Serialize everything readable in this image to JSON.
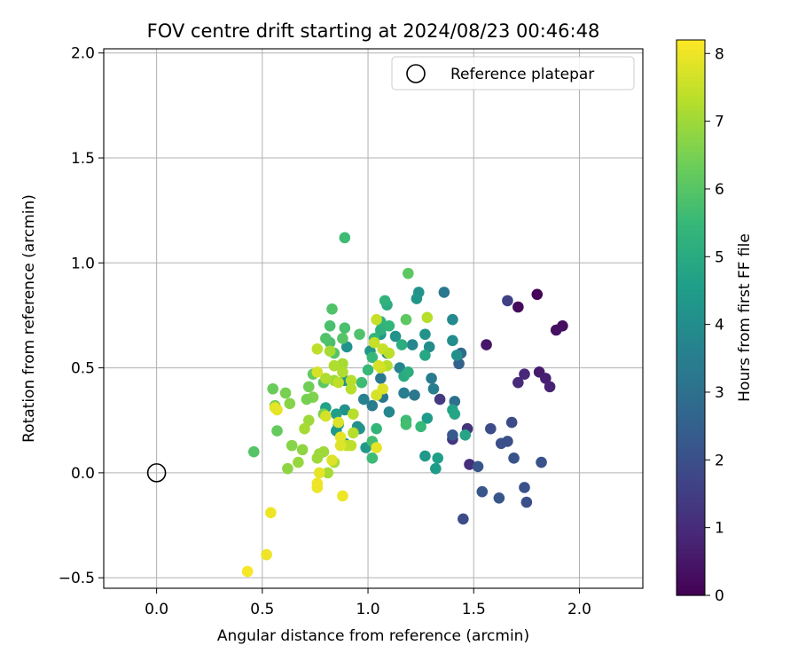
{
  "chart_data": {
    "type": "scatter",
    "title": "FOV centre drift starting at 2024/08/23 00:46:48",
    "xlabel": "Angular distance from reference (arcmin)",
    "ylabel": "Rotation from reference (arcmin)",
    "xlim": [
      -0.25,
      2.3
    ],
    "ylim": [
      -0.55,
      2.02
    ],
    "xticks": [
      0.0,
      0.5,
      1.0,
      1.5,
      2.0
    ],
    "xtick_labels": [
      "0.0",
      "0.5",
      "1.0",
      "1.5",
      "2.0"
    ],
    "yticks": [
      -0.5,
      0.0,
      0.5,
      1.0,
      1.5,
      2.0
    ],
    "ytick_labels": [
      "−0.5",
      "0.0",
      "0.5",
      "1.0",
      "1.5",
      "2.0"
    ],
    "grid": true,
    "legend": {
      "position": "top-right",
      "entries": [
        "Reference platepar"
      ]
    },
    "reference_point": {
      "x": 0.0,
      "y": 0.0,
      "name": "Reference platepar"
    },
    "colorbar": {
      "label": "Hours from first FF file",
      "range": [
        0,
        8.2
      ],
      "ticks": [
        0,
        1,
        2,
        3,
        4,
        5,
        6,
        7,
        8
      ],
      "tick_labels": [
        "0",
        "1",
        "2",
        "3",
        "4",
        "5",
        "6",
        "7",
        "8"
      ],
      "colormap": [
        "#440154",
        "#482878",
        "#3e4989",
        "#31688e",
        "#26828e",
        "#1f9e89",
        "#35b779",
        "#6ece58",
        "#b5de2b",
        "#fde725"
      ]
    },
    "points": [
      [
        1.8,
        0.85,
        0.1
      ],
      [
        1.71,
        0.79,
        0.2
      ],
      [
        1.92,
        0.7,
        0.3
      ],
      [
        1.89,
        0.68,
        0.35
      ],
      [
        1.56,
        0.61,
        0.5
      ],
      [
        1.81,
        0.48,
        0.6
      ],
      [
        1.84,
        0.45,
        0.7
      ],
      [
        1.86,
        0.41,
        0.8
      ],
      [
        1.74,
        0.47,
        0.9
      ],
      [
        1.71,
        0.43,
        1.0
      ],
      [
        1.48,
        0.04,
        1.1
      ],
      [
        1.47,
        0.21,
        1.2
      ],
      [
        1.4,
        0.16,
        1.3
      ],
      [
        1.34,
        0.35,
        1.4
      ],
      [
        1.66,
        0.82,
        1.6
      ],
      [
        1.68,
        0.24,
        1.9
      ],
      [
        1.58,
        0.21,
        1.9
      ],
      [
        1.66,
        0.15,
        2.0
      ],
      [
        1.63,
        0.14,
        2.0
      ],
      [
        1.69,
        0.07,
        2.1
      ],
      [
        1.82,
        0.05,
        2.1
      ],
      [
        1.52,
        0.03,
        2.2
      ],
      [
        1.54,
        -0.09,
        2.2
      ],
      [
        1.62,
        -0.12,
        2.2
      ],
      [
        1.74,
        -0.07,
        2.1
      ],
      [
        1.75,
        -0.14,
        2.0
      ],
      [
        1.45,
        -0.22,
        1.9
      ],
      [
        1.4,
        0.18,
        2.3
      ],
      [
        1.43,
        0.52,
        2.6
      ],
      [
        1.44,
        0.57,
        2.8
      ],
      [
        1.41,
        0.34,
        3.0
      ],
      [
        1.36,
        0.86,
        3.3
      ],
      [
        1.3,
        0.45,
        3.4
      ],
      [
        1.31,
        0.4,
        3.5
      ],
      [
        1.22,
        0.37,
        3.3
      ],
      [
        1.17,
        0.38,
        3.5
      ],
      [
        1.07,
        0.36,
        3.3
      ],
      [
        1.02,
        0.32,
        3.4
      ],
      [
        1.06,
        0.45,
        3.3
      ],
      [
        0.98,
        0.35,
        3.6
      ],
      [
        1.15,
        0.5,
        3.7
      ],
      [
        1.21,
        0.61,
        3.8
      ],
      [
        1.1,
        0.29,
        3.8
      ],
      [
        1.4,
        0.73,
        3.9
      ],
      [
        1.4,
        0.63,
        4.0
      ],
      [
        1.42,
        0.56,
        4.1
      ],
      [
        1.29,
        0.6,
        4.0
      ],
      [
        1.24,
        0.86,
        4.2
      ],
      [
        1.23,
        0.83,
        4.3
      ],
      [
        1.27,
        0.66,
        4.2
      ],
      [
        1.13,
        0.65,
        4.2
      ],
      [
        1.09,
        0.57,
        4.1
      ],
      [
        1.06,
        0.66,
        4.3
      ],
      [
        1.01,
        0.58,
        4.3
      ],
      [
        0.9,
        0.6,
        4.2
      ],
      [
        0.89,
        0.44,
        4.2
      ],
      [
        0.96,
        0.21,
        4.2
      ],
      [
        0.95,
        0.22,
        4.1
      ],
      [
        0.89,
        0.3,
        4.2
      ],
      [
        0.89,
        0.14,
        4.3
      ],
      [
        0.86,
        0.23,
        4.5
      ],
      [
        0.85,
        0.28,
        4.6
      ],
      [
        0.85,
        0.2,
        4.4
      ],
      [
        0.8,
        0.31,
        4.7
      ],
      [
        0.99,
        0.12,
        4.4
      ],
      [
        1.27,
        0.08,
        4.4
      ],
      [
        1.32,
        0.02,
        4.5
      ],
      [
        1.33,
        0.07,
        4.6
      ],
      [
        1.28,
        0.26,
        4.5
      ],
      [
        1.4,
        0.3,
        4.7
      ],
      [
        1.41,
        0.28,
        4.8
      ],
      [
        1.46,
        0.18,
        4.8
      ],
      [
        1.27,
        0.56,
        4.9
      ],
      [
        1.17,
        0.46,
        5.0
      ],
      [
        1.19,
        0.48,
        5.1
      ],
      [
        1.16,
        0.61,
        5.1
      ],
      [
        1.06,
        0.68,
        5.2
      ],
      [
        1.06,
        0.72,
        5.3
      ],
      [
        1.09,
        0.8,
        5.0
      ],
      [
        1.08,
        0.82,
        5.3
      ],
      [
        1.1,
        0.7,
        5.4
      ],
      [
        1.03,
        0.64,
        5.4
      ],
      [
        1.02,
        0.55,
        5.5
      ],
      [
        1.0,
        0.49,
        5.5
      ],
      [
        0.97,
        0.43,
        5.6
      ],
      [
        1.02,
        0.07,
        5.6
      ],
      [
        1.02,
        0.15,
        5.7
      ],
      [
        1.04,
        0.21,
        5.4
      ],
      [
        1.18,
        0.25,
        5.6
      ],
      [
        1.18,
        0.23,
        5.7
      ],
      [
        1.25,
        0.22,
        5.5
      ],
      [
        0.82,
        0.7,
        5.8
      ],
      [
        0.82,
        0.62,
        5.8
      ],
      [
        0.8,
        0.64,
        5.9
      ],
      [
        0.83,
        0.78,
        5.9
      ],
      [
        0.88,
        0.64,
        6.0
      ],
      [
        0.84,
        0.57,
        6.0
      ],
      [
        0.89,
        0.69,
        5.8
      ],
      [
        0.96,
        0.66,
        5.9
      ],
      [
        0.89,
        1.12,
        5.6
      ],
      [
        1.19,
        0.95,
        6.1
      ],
      [
        1.18,
        0.73,
        6.1
      ],
      [
        0.79,
        0.43,
        6.1
      ],
      [
        0.74,
        0.47,
        6.2
      ],
      [
        0.46,
        0.1,
        6.0
      ],
      [
        0.57,
        0.2,
        6.2
      ],
      [
        0.55,
        0.4,
        6.3
      ],
      [
        0.72,
        0.41,
        6.4
      ],
      [
        0.61,
        0.38,
        6.5
      ],
      [
        0.74,
        0.36,
        6.6
      ],
      [
        0.71,
        0.35,
        6.5
      ],
      [
        0.79,
        0.28,
        6.5
      ],
      [
        0.63,
        0.33,
        6.7
      ],
      [
        0.56,
        0.32,
        6.5
      ],
      [
        0.64,
        0.13,
        6.7
      ],
      [
        0.69,
        0.11,
        6.8
      ],
      [
        0.62,
        0.02,
        6.8
      ],
      [
        0.67,
        0.05,
        6.9
      ],
      [
        0.77,
        0.09,
        6.9
      ],
      [
        0.79,
        0.1,
        7.0
      ],
      [
        0.76,
        0.07,
        7.0
      ],
      [
        0.84,
        0.05,
        7.1
      ],
      [
        0.81,
        0.0,
        7.1
      ],
      [
        0.72,
        0.25,
        7.0
      ],
      [
        0.7,
        0.21,
        7.1
      ],
      [
        0.84,
        0.44,
        7.0
      ],
      [
        0.88,
        0.52,
        7.1
      ],
      [
        0.82,
        0.58,
        7.1
      ],
      [
        0.84,
        0.51,
        7.2
      ],
      [
        0.8,
        0.45,
        7.2
      ],
      [
        0.88,
        0.48,
        7.2
      ],
      [
        0.92,
        0.4,
        7.3
      ],
      [
        0.92,
        0.44,
        7.3
      ],
      [
        0.93,
        0.28,
        7.3
      ],
      [
        0.93,
        0.19,
        7.3
      ],
      [
        0.9,
        0.13,
        7.4
      ],
      [
        0.92,
        0.13,
        7.4
      ],
      [
        0.76,
        0.59,
        7.4
      ],
      [
        0.86,
        0.43,
        7.4
      ],
      [
        1.09,
        0.51,
        7.3
      ],
      [
        1.07,
        0.59,
        7.5
      ],
      [
        1.1,
        0.57,
        7.4
      ],
      [
        1.03,
        0.62,
        7.5
      ],
      [
        1.04,
        0.73,
        7.5
      ],
      [
        1.28,
        0.74,
        7.3
      ],
      [
        1.06,
        0.5,
        7.6
      ],
      [
        1.05,
        0.51,
        7.7
      ],
      [
        1.04,
        0.37,
        7.7
      ],
      [
        1.07,
        0.4,
        7.8
      ],
      [
        1.04,
        0.12,
        7.9
      ],
      [
        0.86,
        0.24,
        7.8
      ],
      [
        0.87,
        0.17,
        7.9
      ],
      [
        0.87,
        0.13,
        7.8
      ],
      [
        0.83,
        0.06,
        7.8
      ],
      [
        0.77,
        0.0,
        7.9
      ],
      [
        0.76,
        -0.05,
        8.0
      ],
      [
        0.76,
        -0.07,
        8.0
      ],
      [
        0.88,
        -0.11,
        8.0
      ],
      [
        0.56,
        0.31,
        7.9
      ],
      [
        0.57,
        0.3,
        7.9
      ],
      [
        0.76,
        0.48,
        7.7
      ],
      [
        0.8,
        0.27,
        7.7
      ],
      [
        0.54,
        -0.19,
        8.0
      ],
      [
        0.52,
        -0.39,
        8.0
      ],
      [
        0.43,
        -0.47,
        8.1
      ]
    ]
  }
}
